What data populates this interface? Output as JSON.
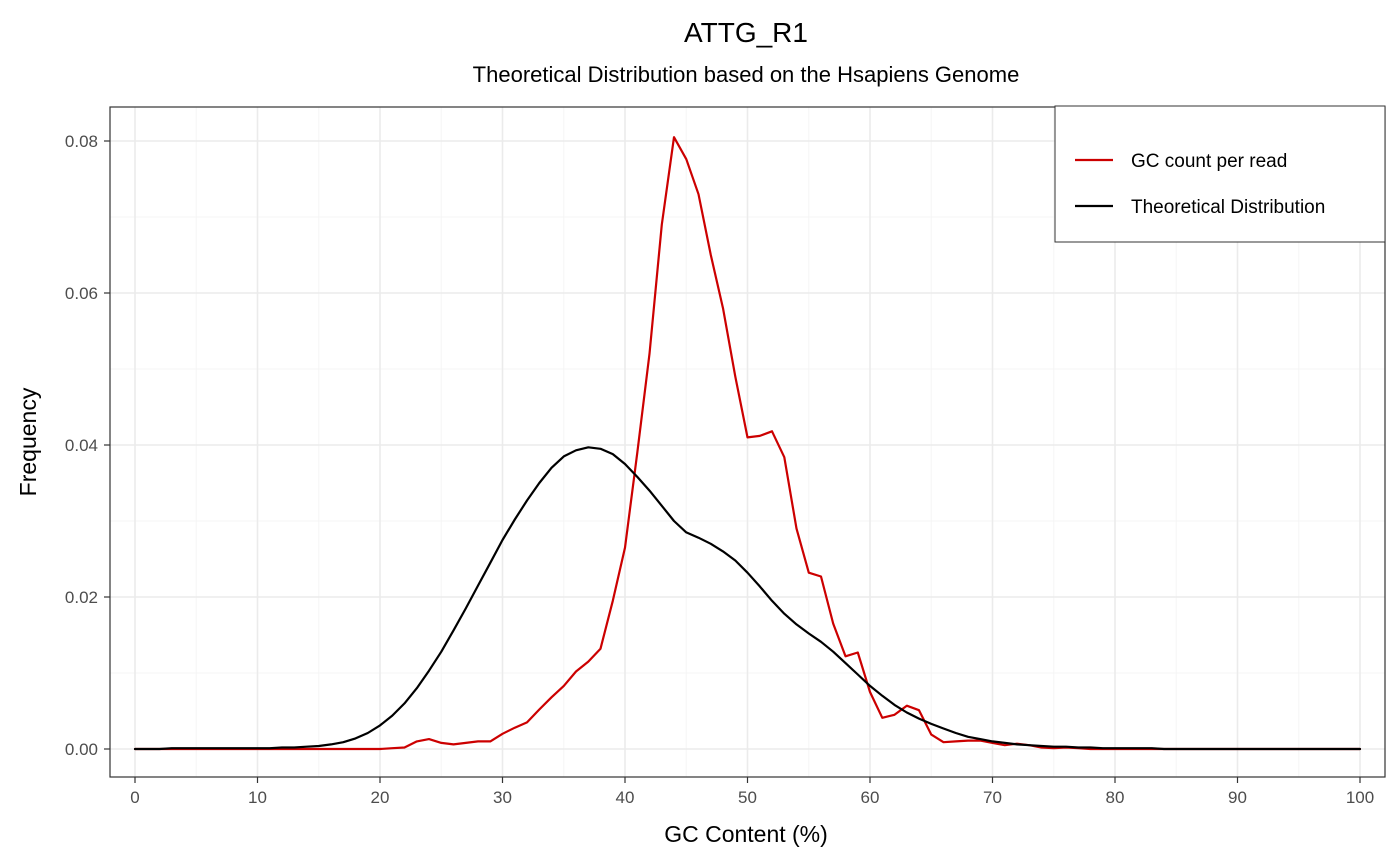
{
  "chart_data": {
    "type": "line",
    "title": "ATTG_R1",
    "subtitle": "Theoretical Distribution based on the Hsapiens Genome",
    "xlabel": "GC Content (%)",
    "ylabel": "Frequency",
    "xlim": [
      0,
      100
    ],
    "ylim": [
      0,
      0.084
    ],
    "x_ticks": [
      0,
      10,
      20,
      30,
      40,
      50,
      60,
      70,
      80,
      90,
      100
    ],
    "y_ticks": [
      0,
      0.02,
      0.04,
      0.06,
      0.08
    ],
    "y_tick_labels": [
      "0.00",
      "0.02",
      "0.04",
      "0.06",
      "0.08"
    ],
    "grid": true,
    "legend_position": "top-right",
    "x": [
      0,
      1,
      2,
      3,
      4,
      5,
      6,
      7,
      8,
      9,
      10,
      11,
      12,
      13,
      14,
      15,
      16,
      17,
      18,
      19,
      20,
      21,
      22,
      23,
      24,
      25,
      26,
      27,
      28,
      29,
      30,
      31,
      32,
      33,
      34,
      35,
      36,
      37,
      38,
      39,
      40,
      41,
      42,
      43,
      44,
      45,
      46,
      47,
      48,
      49,
      50,
      51,
      52,
      53,
      54,
      55,
      56,
      57,
      58,
      59,
      60,
      61,
      62,
      63,
      64,
      65,
      66,
      67,
      68,
      69,
      70,
      71,
      72,
      73,
      74,
      75,
      76,
      77,
      78,
      79,
      80,
      81,
      82,
      83,
      84,
      85,
      86,
      87,
      88,
      89,
      90,
      91,
      92,
      93,
      94,
      95,
      96,
      97,
      98,
      99,
      100
    ],
    "series": [
      {
        "name": "GC count per read",
        "color": "#cc0000",
        "values": [
          0,
          0,
          0,
          0,
          0,
          0,
          0,
          0,
          0,
          0,
          0,
          0,
          0,
          0,
          0,
          0,
          0,
          0,
          0,
          0,
          0,
          0.0001,
          0.0002,
          0.001,
          0.0013,
          0.0008,
          0.0006,
          0.0008,
          0.001,
          0.001,
          0.002,
          0.0028,
          0.0035,
          0.0052,
          0.0068,
          0.0083,
          0.0102,
          0.0115,
          0.0132,
          0.0195,
          0.0265,
          0.039,
          0.052,
          0.069,
          0.0805,
          0.0776,
          0.073,
          0.065,
          0.058,
          0.049,
          0.041,
          0.0412,
          0.0418,
          0.0384,
          0.029,
          0.0232,
          0.0227,
          0.0165,
          0.0122,
          0.0127,
          0.0075,
          0.0041,
          0.0045,
          0.0057,
          0.0051,
          0.0019,
          0.0009,
          0.001,
          0.0011,
          0.0011,
          0.0008,
          0.0005,
          0.0007,
          0.0005,
          0.0002,
          0.0001,
          0.0002,
          0.0001,
          0,
          0,
          0,
          0,
          0,
          0,
          0,
          0,
          0,
          0,
          0,
          0,
          0,
          0,
          0,
          0,
          0,
          0,
          0,
          0,
          0,
          0,
          0
        ]
      },
      {
        "name": "Theoretical Distribution",
        "color": "#000000",
        "values": [
          0,
          0,
          0,
          0.0001,
          0.0001,
          0.0001,
          0.0001,
          0.0001,
          0.0001,
          0.0001,
          0.0001,
          0.0001,
          0.0002,
          0.0002,
          0.0003,
          0.0004,
          0.0006,
          0.0009,
          0.0014,
          0.0021,
          0.0031,
          0.0044,
          0.006,
          0.008,
          0.0103,
          0.0128,
          0.0156,
          0.0185,
          0.0215,
          0.0245,
          0.0275,
          0.0302,
          0.0327,
          0.035,
          0.037,
          0.0385,
          0.0393,
          0.0397,
          0.0395,
          0.0388,
          0.0375,
          0.0358,
          0.034,
          0.032,
          0.03,
          0.0285,
          0.0278,
          0.027,
          0.026,
          0.0248,
          0.0232,
          0.0214,
          0.0195,
          0.0178,
          0.0164,
          0.0152,
          0.0141,
          0.0128,
          0.0113,
          0.0098,
          0.0083,
          0.007,
          0.0058,
          0.0048,
          0.004,
          0.0033,
          0.0027,
          0.0021,
          0.0016,
          0.0013,
          0.001,
          0.0008,
          0.0006,
          0.0005,
          0.0004,
          0.0003,
          0.0003,
          0.0002,
          0.0002,
          0.0001,
          0.0001,
          0.0001,
          0.0001,
          0.0001,
          0,
          0,
          0,
          0,
          0,
          0,
          0,
          0,
          0,
          0,
          0,
          0,
          0,
          0,
          0,
          0,
          0
        ]
      }
    ]
  },
  "colors": {
    "panel_border": "#333333",
    "grid_major": "#ebebeb",
    "grid_minor": "#f5f5f5",
    "tick": "#333333"
  }
}
